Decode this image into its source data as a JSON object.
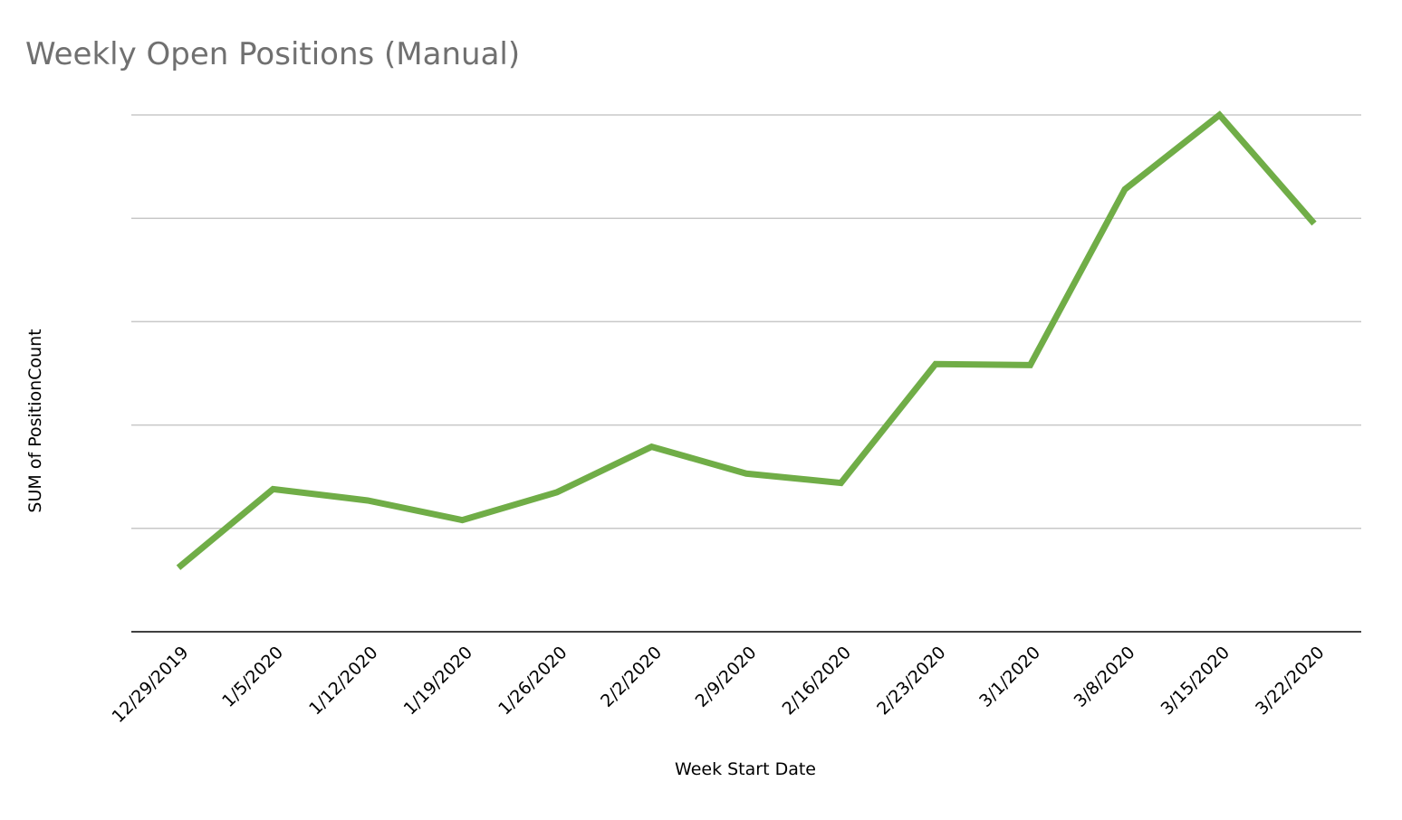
{
  "chart_data": {
    "type": "line",
    "title": "Weekly Open Positions (Manual)",
    "xlabel": "Week Start Date",
    "ylabel": "SUM of  PositionCount",
    "categories": [
      "12/29/2019",
      "1/5/2020",
      "1/12/2020",
      "1/19/2020",
      "1/26/2020",
      "2/2/2020",
      "2/9/2020",
      "2/16/2020",
      "2/23/2020",
      "3/1/2020",
      "3/8/2020",
      "3/15/2020",
      "3/22/2020"
    ],
    "series": [
      {
        "values": [
          0.62,
          1.38,
          1.27,
          1.08,
          1.35,
          1.79,
          1.53,
          1.44,
          2.59,
          2.58,
          4.28,
          5.0,
          3.95
        ],
        "color": "#70ad47"
      }
    ],
    "ylim": [
      0,
      5
    ],
    "y_gridlines": 5,
    "y_tick_labels_shown": false,
    "grid": true,
    "legend": "none"
  }
}
